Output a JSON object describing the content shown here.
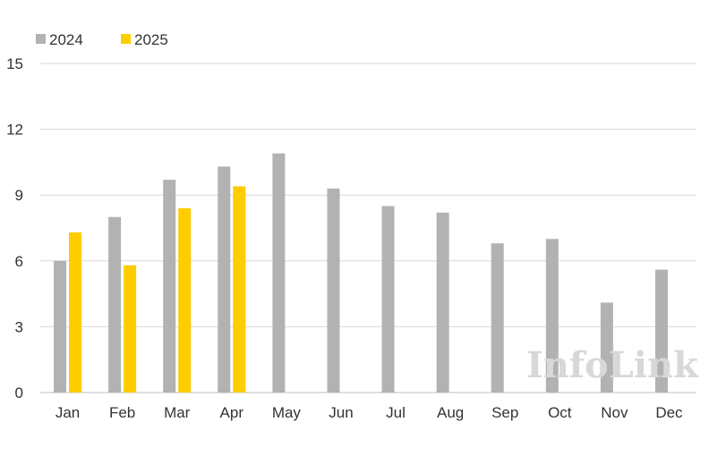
{
  "chart_data": {
    "type": "bar",
    "categories": [
      "Jan",
      "Feb",
      "Mar",
      "Apr",
      "May",
      "Jun",
      "Jul",
      "Aug",
      "Sep",
      "Oct",
      "Nov",
      "Dec"
    ],
    "series": [
      {
        "name": "2024",
        "color": "#b2b2b2",
        "values": [
          6.0,
          8.0,
          9.7,
          10.3,
          10.9,
          9.3,
          8.5,
          8.2,
          6.8,
          7.0,
          4.1,
          5.6
        ]
      },
      {
        "name": "2025",
        "color": "#ffcc00",
        "values": [
          7.3,
          5.8,
          8.4,
          9.4,
          null,
          null,
          null,
          null,
          null,
          null,
          null,
          null
        ]
      }
    ],
    "yticks": [
      "0",
      "3",
      "6",
      "9",
      "12",
      "15"
    ],
    "ylim": [
      0,
      15
    ],
    "grid": true,
    "legend": "top-left",
    "title": "",
    "xlabel": "",
    "ylabel": ""
  },
  "watermark": "InfoLink"
}
